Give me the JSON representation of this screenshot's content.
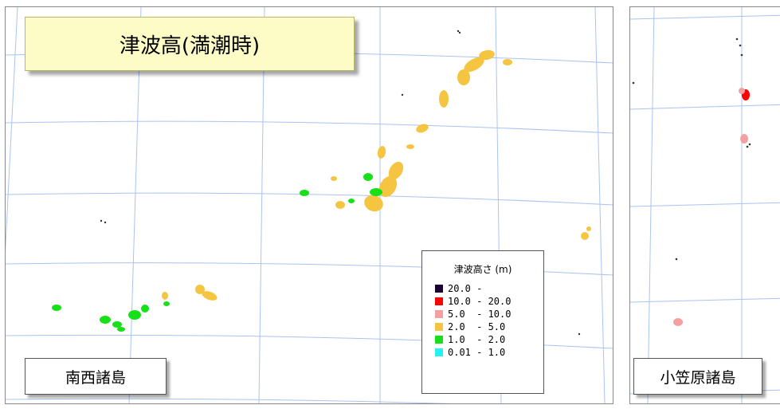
{
  "title": "津波高(満潮時)",
  "panels": {
    "left_label": "南西諸島",
    "right_label": "小笠原諸島"
  },
  "legend": {
    "title": "津波高さ (m)",
    "items": [
      {
        "label": "20.0 -",
        "color": "#1a0033"
      },
      {
        "label": "10.0 - 20.0",
        "color": "#ff0000"
      },
      {
        "label": "5.0  - 10.0",
        "color": "#f4a0a0"
      },
      {
        "label": "2.0  - 5.0",
        "color": "#f5c542"
      },
      {
        "label": "1.0  - 2.0",
        "color": "#18e018"
      },
      {
        "label": "0.01 - 1.0",
        "color": "#22f2f2"
      }
    ]
  },
  "colors": {
    "grid": "#aac4f0",
    "land_outline": "#555555",
    "title_bg": "#fdfcc7"
  }
}
